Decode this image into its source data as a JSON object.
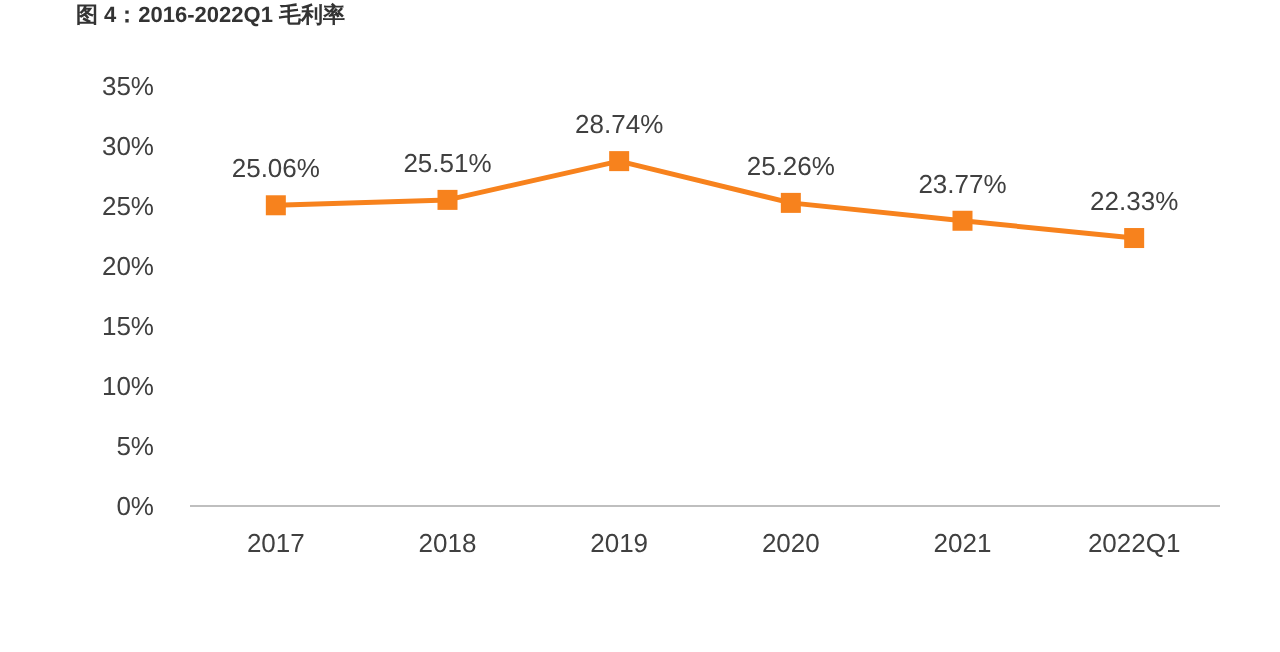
{
  "chart_data": {
    "type": "line",
    "title": "图 4：2016-2022Q1 毛利率",
    "categories": [
      "2017",
      "2018",
      "2019",
      "2020",
      "2021",
      "2022Q1"
    ],
    "series": [
      {
        "color": "#f7821d",
        "values": [
          25.06,
          25.51,
          28.74,
          25.26,
          23.77,
          22.33
        ],
        "value_labels": [
          "25.06%",
          "25.51%",
          "28.74%",
          "25.26%",
          "23.77%",
          "22.33%"
        ]
      }
    ],
    "ylim": [
      0,
      35
    ],
    "yticks": [
      {
        "value": 0,
        "label": "0%"
      },
      {
        "value": 5,
        "label": "5%"
      },
      {
        "value": 10,
        "label": "10%"
      },
      {
        "value": 15,
        "label": "15%"
      },
      {
        "value": 20,
        "label": "20%"
      },
      {
        "value": 25,
        "label": "25%"
      },
      {
        "value": 30,
        "label": "30%"
      },
      {
        "value": 35,
        "label": "35%"
      }
    ],
    "grid": false,
    "legend": false,
    "marker": "square",
    "line_style": "solid"
  }
}
